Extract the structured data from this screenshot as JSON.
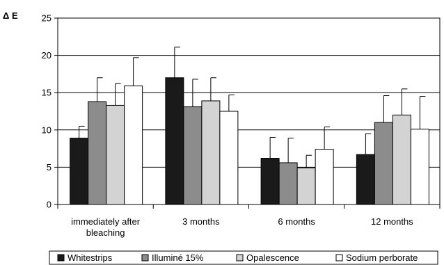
{
  "chart_data": {
    "type": "bar",
    "title": "",
    "xlabel": "",
    "ylabel": "Δ E",
    "ylim": [
      0,
      25
    ],
    "yticks": [
      0,
      5,
      10,
      15,
      20,
      25
    ],
    "grid": "horizontal",
    "legend_position": "bottom",
    "categories": [
      "immediately after bleaching",
      "3 months",
      "6 months",
      "12 months"
    ],
    "series": [
      {
        "name": "Whitestrips",
        "color": "#1a1a1a",
        "values": [
          8.9,
          17.0,
          6.2,
          6.7
        ],
        "errors": [
          1.6,
          4.1,
          2.8,
          2.8
        ]
      },
      {
        "name": "Illuminé 15%",
        "color": "#8c8c8c",
        "values": [
          13.8,
          13.1,
          5.6,
          11.0
        ],
        "errors": [
          3.2,
          3.7,
          3.3,
          3.6
        ]
      },
      {
        "name": "Opalescence",
        "color": "#d3d3d3",
        "values": [
          13.3,
          13.9,
          4.9,
          12.0
        ],
        "errors": [
          2.9,
          3.1,
          1.7,
          3.5
        ]
      },
      {
        "name": "Sodium perborate",
        "color": "#ffffff",
        "values": [
          15.9,
          12.5,
          7.4,
          10.1
        ],
        "errors": [
          3.8,
          2.2,
          3.0,
          4.4
        ]
      }
    ]
  }
}
